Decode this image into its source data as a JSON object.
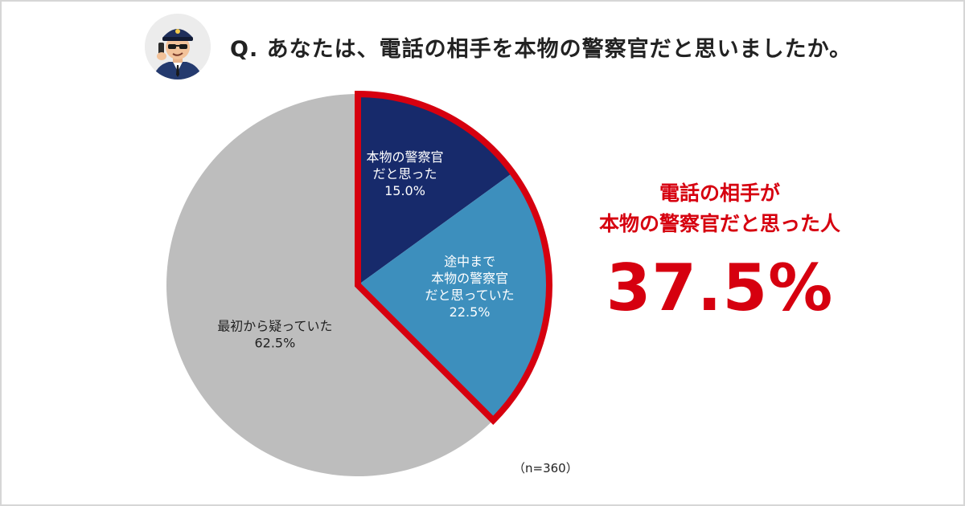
{
  "header": {
    "question": "Q. あなたは、電話の相手を本物の警察官だと思いましたか。",
    "avatar_icon": "police-officer-on-phone-icon"
  },
  "chart_data": {
    "type": "pie",
    "title": "Q. あなたは、電話の相手を本物の警察官だと思いましたか。",
    "start": "12 o'clock",
    "direction": "clockwise",
    "slices": [
      {
        "label": [
          "本物の警察官",
          "だと思った"
        ],
        "value": 15.0,
        "display": "15.0%",
        "color": "#172a6b",
        "highlight": true
      },
      {
        "label": [
          "途中まで",
          "本物の警察官",
          "だと思っていた"
        ],
        "value": 22.5,
        "display": "22.5%",
        "color": "#3d8fbd",
        "highlight": true
      },
      {
        "label": [
          "最初から疑っていた"
        ],
        "value": 62.5,
        "display": "62.5%",
        "color": "#bdbdbd",
        "highlight": false
      }
    ],
    "highlight_color": "#d6000f"
  },
  "callout": {
    "line1": "電話の相手が",
    "line2": "本物の警察官だと思った人",
    "value": "37.5%",
    "color": "#d6000f"
  },
  "note": "（n=360）"
}
